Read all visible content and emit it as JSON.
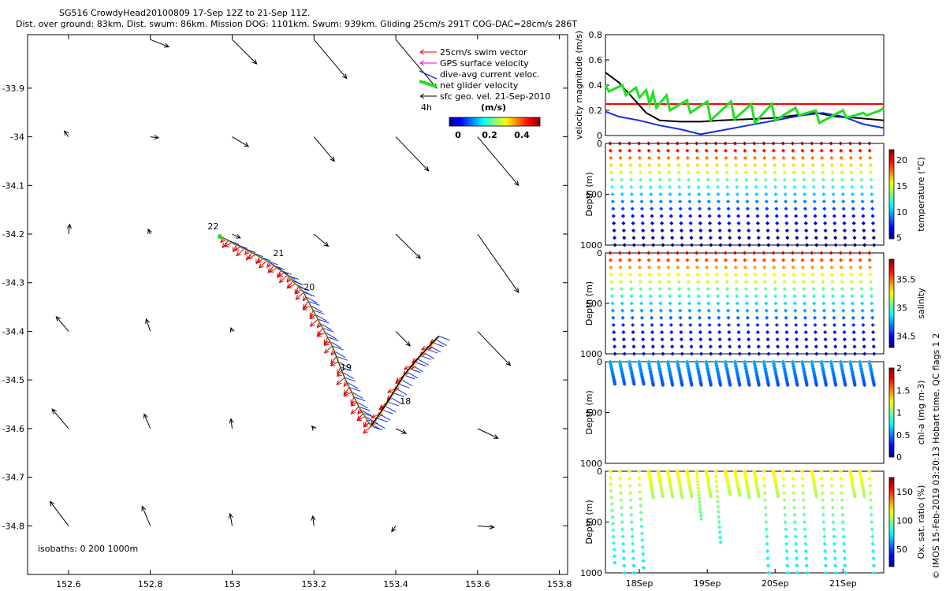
{
  "title": {
    "line1": "SG516 CrowdyHead20100809 17-Sep 12Z to 21-Sep 11Z.",
    "line2": "Dist. over ground: 83km. Dist. swum: 86km. Mission DOG: 1101km. Swum: 939km. Gliding 25cm/s 291T COG-DAC=28cm/s 286T"
  },
  "colors": {
    "swim": "#e00000",
    "gps": "#e000e0",
    "dac": "#1030e0",
    "net": "#20e020",
    "sfc": "#000000",
    "limit": "#ff0000"
  },
  "chart_data": [
    {
      "id": "map",
      "type": "scatter",
      "title": "",
      "xlim": [
        152.5,
        153.82
      ],
      "ylim": [
        -34.9,
        -33.79
      ],
      "xticks": [
        "152.6",
        "152.8",
        "153",
        "153.2",
        "153.4",
        "153.6",
        "153.8"
      ],
      "yticks": [
        "-33.9",
        "-34",
        "-34.1",
        "-34.2",
        "-34.3",
        "-34.4",
        "-34.5",
        "-34.6",
        "-34.7",
        "-34.8"
      ],
      "legend": {
        "items": [
          "25cm/s swim vector",
          "GPS surface velocity",
          "dive-avg current veloc.",
          "net glider velocity",
          "sfc geo. vel. 21-Sep-2010"
        ],
        "time_label": "4h",
        "colorbar_label": "(m/s)",
        "colorbar_ticks": [
          "0",
          "0.2",
          "0.4"
        ]
      },
      "isobaths_label": "isobaths: 0   200  1000m",
      "track": [
        [
          153.505,
          -34.41
        ],
        [
          153.46,
          -34.45
        ],
        [
          153.42,
          -34.49
        ],
        [
          153.38,
          -34.545
        ],
        [
          153.34,
          -34.595
        ],
        [
          153.31,
          -34.555
        ],
        [
          153.275,
          -34.495
        ],
        [
          153.245,
          -34.43
        ],
        [
          153.21,
          -34.375
        ],
        [
          153.175,
          -34.32
        ],
        [
          153.135,
          -34.285
        ],
        [
          153.085,
          -34.255
        ],
        [
          153.03,
          -34.23
        ],
        [
          152.97,
          -34.205
        ]
      ],
      "day_labels": [
        {
          "text": "22",
          "lon": 152.94,
          "lat": -34.19
        },
        {
          "text": "21",
          "lon": 153.1,
          "lat": -34.245
        },
        {
          "text": "20",
          "lon": 153.175,
          "lat": -34.315
        },
        {
          "text": "19",
          "lon": 153.265,
          "lat": -34.48
        },
        {
          "text": "18",
          "lon": 153.41,
          "lat": -34.55
        }
      ],
      "sfc_vectors": [
        [
          152.6,
          -34.2,
          0.003,
          0.02
        ],
        [
          152.6,
          -34.4,
          -0.03,
          0.03
        ],
        [
          152.6,
          -34.6,
          -0.04,
          0.04
        ],
        [
          152.6,
          -34.8,
          -0.045,
          0.05
        ],
        [
          152.8,
          -34.2,
          -0.005,
          0.01
        ],
        [
          152.8,
          -34.4,
          -0.01,
          0.025
        ],
        [
          152.8,
          -34.6,
          -0.015,
          0.03
        ],
        [
          152.8,
          -34.8,
          -0.02,
          0.04
        ],
        [
          153.0,
          -34.4,
          -0.003,
          0.007
        ],
        [
          153.0,
          -34.6,
          -0.003,
          0.02
        ],
        [
          153.0,
          -34.8,
          -0.005,
          0.025
        ],
        [
          153.2,
          -34.6,
          -0.005,
          0.005
        ],
        [
          153.2,
          -34.8,
          -0.003,
          0.02
        ],
        [
          153.4,
          -34.6,
          0.025,
          -0.01
        ],
        [
          153.4,
          -34.8,
          -0.01,
          -0.012
        ],
        [
          153.6,
          -34.6,
          0.05,
          -0.02
        ],
        [
          153.6,
          -34.8,
          0.04,
          -0.003
        ],
        [
          152.6,
          -34.0,
          -0.01,
          0.012
        ],
        [
          152.8,
          -34.0,
          0.02,
          -0.002
        ],
        [
          153.0,
          -34.0,
          0.04,
          -0.02
        ],
        [
          153.2,
          -34.0,
          0.05,
          -0.05
        ],
        [
          153.4,
          -34.0,
          0.08,
          -0.07
        ],
        [
          153.6,
          -34.0,
          0.1,
          -0.1
        ],
        [
          153.0,
          -34.2,
          0.02,
          -0.008
        ],
        [
          153.2,
          -34.2,
          0.035,
          -0.025
        ],
        [
          153.4,
          -34.2,
          0.06,
          -0.05
        ],
        [
          153.6,
          -34.2,
          0.1,
          -0.12
        ],
        [
          153.4,
          -34.4,
          0.035,
          -0.03
        ],
        [
          153.6,
          -34.4,
          0.08,
          -0.07
        ],
        [
          152.8,
          -33.8,
          0.045,
          -0.015
        ],
        [
          153.0,
          -33.8,
          0.06,
          -0.05
        ],
        [
          153.2,
          -33.8,
          0.08,
          -0.08
        ],
        [
          153.4,
          -33.8,
          0.1,
          -0.1
        ]
      ]
    },
    {
      "id": "velocity",
      "type": "line",
      "ylabel": "velocity magnitude (m/s)",
      "ylim": [
        0,
        0.8
      ],
      "yticks": [
        "0",
        "0.2",
        "0.4",
        "0.6",
        "0.8"
      ],
      "xlim": [
        17.5,
        21.6
      ],
      "series": [
        {
          "color": "#ff0000",
          "x": [
            17.5,
            21.6
          ],
          "y": [
            0.25,
            0.25
          ]
        },
        {
          "color": "#000000",
          "x": [
            17.5,
            17.7,
            17.9,
            18.1,
            18.3,
            18.6,
            18.9,
            19.2,
            19.6,
            20.0,
            20.3,
            20.6,
            20.9,
            21.2,
            21.6
          ],
          "y": [
            0.5,
            0.42,
            0.3,
            0.18,
            0.12,
            0.11,
            0.11,
            0.12,
            0.13,
            0.14,
            0.16,
            0.18,
            0.15,
            0.14,
            0.12
          ]
        },
        {
          "color": "#1030e0",
          "x": [
            17.5,
            17.7,
            18.0,
            18.3,
            18.6,
            18.9,
            19.2,
            19.5,
            19.8,
            20.1,
            20.4,
            20.7,
            21.0,
            21.3,
            21.6
          ],
          "y": [
            0.19,
            0.15,
            0.12,
            0.08,
            0.05,
            0.01,
            0.04,
            0.07,
            0.1,
            0.13,
            0.16,
            0.18,
            0.15,
            0.09,
            0.06
          ]
        },
        {
          "color": "#20e020",
          "x": [
            17.5,
            17.55,
            17.75,
            17.8,
            17.95,
            18.0,
            18.1,
            18.15,
            18.2,
            18.25,
            18.4,
            18.45,
            18.7,
            18.75,
            19.0,
            19.05,
            19.35,
            19.4,
            19.65,
            19.7,
            19.95,
            20.0,
            20.3,
            20.35,
            20.6,
            20.65,
            21.0,
            21.05,
            21.3,
            21.35,
            21.55,
            21.6
          ],
          "y": [
            0.4,
            0.35,
            0.4,
            0.32,
            0.38,
            0.3,
            0.36,
            0.25,
            0.34,
            0.22,
            0.32,
            0.2,
            0.28,
            0.18,
            0.27,
            0.12,
            0.27,
            0.13,
            0.25,
            0.1,
            0.25,
            0.12,
            0.22,
            0.16,
            0.2,
            0.1,
            0.2,
            0.14,
            0.18,
            0.16,
            0.2,
            0.22
          ]
        }
      ]
    },
    {
      "id": "temperature",
      "type": "scatter",
      "ylabel": "Depth (m)",
      "ylim": [
        0,
        1000
      ],
      "yticks": [
        "0",
        "500",
        "1000"
      ],
      "colorbar_label": "temperature (°C)",
      "colorbar_range": [
        4.8,
        22
      ],
      "colorbar_ticks": [
        "5",
        "10",
        "15",
        "20"
      ],
      "profile_max_depth": [
        1000,
        1000,
        1000,
        1000,
        1000,
        1000,
        1000,
        1000,
        1000,
        1000,
        1000,
        1000,
        1000,
        1000,
        1000,
        1000,
        1000,
        1000,
        1000,
        1000,
        1000,
        1000,
        1000,
        1000,
        1000,
        1000,
        1000,
        1000
      ],
      "surface_value": 21.5,
      "deep_value": 5
    },
    {
      "id": "salinity",
      "type": "scatter",
      "ylabel": "Depth (m)",
      "ylim": [
        0,
        1000
      ],
      "yticks": [
        "0",
        "500",
        "1000"
      ],
      "colorbar_label": "salinity",
      "colorbar_range": [
        34.3,
        35.85
      ],
      "colorbar_ticks": [
        "34.5",
        "35",
        "35.5"
      ],
      "profile_max_depth": [
        1000,
        1000,
        1000,
        1000,
        1000,
        1000,
        1000,
        1000,
        1000,
        1000,
        1000,
        1000,
        1000,
        1000,
        1000,
        1000,
        1000,
        1000,
        1000,
        1000,
        1000,
        1000,
        1000,
        1000,
        1000,
        1000,
        1000,
        1000
      ],
      "surface_value": 35.7,
      "deep_value": 34.4
    },
    {
      "id": "chla",
      "type": "scatter",
      "ylabel": "Depth (m)",
      "ylim": [
        0,
        1000
      ],
      "yticks": [
        "0",
        "500",
        "1000"
      ],
      "colorbar_label": "chl-a (mg m-3)",
      "colorbar_range": [
        0,
        2
      ],
      "colorbar_ticks": [
        "0",
        "0.5",
        "1",
        "1.5",
        "2"
      ],
      "profile_max_depth": [
        220,
        220,
        220,
        220,
        230,
        230,
        230,
        230,
        230,
        230,
        230,
        230,
        230,
        230,
        230,
        230,
        230,
        230,
        230,
        230,
        230,
        230,
        230,
        230,
        230,
        230,
        230,
        230
      ],
      "surface_value": 0.6,
      "deep_value": 0.02
    },
    {
      "id": "oxygen",
      "type": "scatter",
      "ylabel": "Depth (m)",
      "ylim": [
        0,
        1000
      ],
      "yticks": [
        "0",
        "500",
        "1000"
      ],
      "colorbar_label": "Ox. sat. ratio (%)",
      "colorbar_range": [
        20,
        175
      ],
      "colorbar_ticks": [
        "50",
        "100",
        "150"
      ],
      "profile_max_depth": [
        900,
        1000,
        1000,
        950,
        260,
        250,
        250,
        260,
        250,
        470,
        250,
        700,
        230,
        240,
        260,
        250,
        1000,
        250,
        1000,
        1000,
        1000,
        250,
        1000,
        1000,
        1000,
        250,
        250,
        1000
      ],
      "surface_value": 120,
      "deep_value": 75
    }
  ],
  "time_axis": {
    "ticks": [
      "18Sep",
      "19Sep",
      "20Sep",
      "21Sep"
    ],
    "values": [
      18,
      19,
      20,
      21
    ]
  },
  "footer_text": "© IMOS 15-Feb-2019 03:20:13 Hobart time. QC flags 1  2"
}
